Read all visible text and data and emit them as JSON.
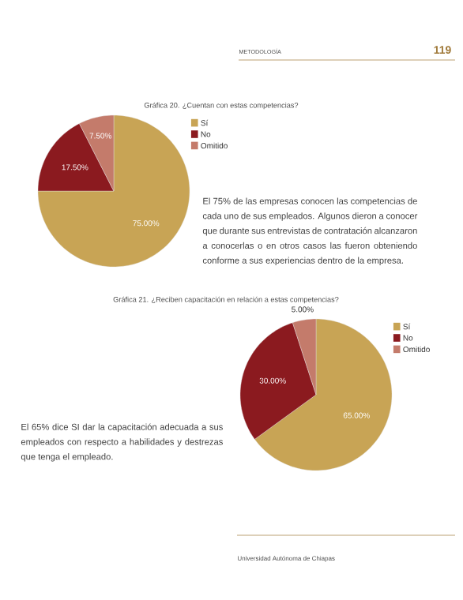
{
  "chart_data": [
    {
      "type": "pie",
      "title": "Gráfica 20. ¿Cuentan con estas competencias?",
      "categories": [
        "Sí",
        "No",
        "Omitido"
      ],
      "values": [
        75,
        17.5,
        7.5
      ],
      "colors": [
        "#c8a455",
        "#8b1a1f",
        "#c47b6b"
      ],
      "value_labels": [
        "75.00%",
        "17.50%",
        "7.50%"
      ],
      "legend": "top right",
      "annotations": [
        "METODOLOGÍA",
        "119",
        "El 75% de las empresas conocen las competencias de cada uno de sus empleados. Algunos dieron a conocer que durante sus entrevistas de contratación alcanzaron a conocerlas o en otros casos las fueron obteniendo conforme a sus experiencias dentro de la empresa."
      ]
    },
    {
      "type": "pie",
      "title": "Gráfica 21. ¿Reciben capacitación en relación a estas competencias?",
      "categories": [
        "Sí",
        "No",
        "Omitido"
      ],
      "values": [
        65,
        30,
        5
      ],
      "colors": [
        "#c8a455",
        "#8b1a1f",
        "#c47b6b"
      ],
      "value_labels": [
        "65.00%",
        "30.00%",
        "5.00%"
      ],
      "legend": "top right",
      "annotations": [
        "El 65% dice SI dar la capacitación adecuada a sus empleados con respecto a habilidades y destrezas que tenga el empleado.",
        "Universidad Autónoma de Chiapas"
      ]
    }
  ]
}
